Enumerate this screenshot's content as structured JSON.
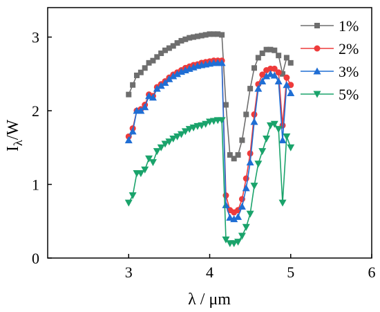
{
  "chart_data": {
    "type": "line",
    "xlabel": "λ / μm",
    "ylabel": "Iλ/W",
    "ylabel_main": "I",
    "ylabel_sub": "λ",
    "ylabel_rest": "/W",
    "xlim": [
      2,
      6
    ],
    "ylim": [
      0,
      3.4
    ],
    "xticks": [
      3,
      4,
      5,
      6
    ],
    "yticks": [
      0,
      1,
      2,
      3
    ],
    "grid": false,
    "legend_position": "top-right",
    "series": [
      {
        "name": "1%",
        "color": "#6e6e6e",
        "marker": "square",
        "x": [
          3.0,
          3.05,
          3.1,
          3.15,
          3.2,
          3.25,
          3.3,
          3.35,
          3.4,
          3.45,
          3.5,
          3.55,
          3.6,
          3.65,
          3.7,
          3.75,
          3.8,
          3.85,
          3.9,
          3.95,
          4.0,
          4.05,
          4.1,
          4.15,
          4.2,
          4.25,
          4.3,
          4.35,
          4.4,
          4.45,
          4.5,
          4.55,
          4.6,
          4.65,
          4.7,
          4.75,
          4.8,
          4.85,
          4.9,
          4.95,
          5.0
        ],
        "y": [
          2.22,
          2.35,
          2.48,
          2.52,
          2.58,
          2.65,
          2.68,
          2.73,
          2.78,
          2.82,
          2.85,
          2.88,
          2.92,
          2.95,
          2.97,
          2.99,
          3.0,
          3.01,
          3.02,
          3.03,
          3.04,
          3.04,
          3.04,
          3.03,
          2.08,
          1.4,
          1.35,
          1.4,
          1.6,
          1.95,
          2.3,
          2.58,
          2.72,
          2.78,
          2.83,
          2.83,
          2.82,
          2.75,
          2.5,
          2.72,
          2.65
        ]
      },
      {
        "name": "2%",
        "color": "#ee3b3b",
        "marker": "circle",
        "x": [
          3.0,
          3.05,
          3.1,
          3.15,
          3.2,
          3.25,
          3.3,
          3.35,
          3.4,
          3.45,
          3.5,
          3.55,
          3.6,
          3.65,
          3.7,
          3.75,
          3.8,
          3.85,
          3.9,
          3.95,
          4.0,
          4.05,
          4.1,
          4.15,
          4.2,
          4.25,
          4.3,
          4.35,
          4.4,
          4.45,
          4.5,
          4.55,
          4.6,
          4.65,
          4.7,
          4.75,
          4.8,
          4.85,
          4.9,
          4.95,
          5.0
        ],
        "y": [
          1.65,
          1.76,
          2.0,
          2.02,
          2.08,
          2.22,
          2.2,
          2.32,
          2.36,
          2.4,
          2.45,
          2.49,
          2.52,
          2.55,
          2.58,
          2.6,
          2.62,
          2.63,
          2.65,
          2.66,
          2.67,
          2.68,
          2.68,
          2.68,
          0.85,
          0.65,
          0.62,
          0.65,
          0.8,
          1.08,
          1.42,
          1.95,
          2.36,
          2.49,
          2.55,
          2.57,
          2.57,
          2.52,
          1.8,
          2.45,
          2.35
        ]
      },
      {
        "name": "3%",
        "color": "#1f6ed4",
        "marker": "triangle-up",
        "x": [
          3.0,
          3.05,
          3.1,
          3.15,
          3.2,
          3.25,
          3.3,
          3.35,
          3.4,
          3.45,
          3.5,
          3.55,
          3.6,
          3.65,
          3.7,
          3.75,
          3.8,
          3.85,
          3.9,
          3.95,
          4.0,
          4.05,
          4.1,
          4.15,
          4.2,
          4.25,
          4.3,
          4.35,
          4.4,
          4.45,
          4.5,
          4.55,
          4.6,
          4.65,
          4.7,
          4.75,
          4.8,
          4.85,
          4.9,
          4.95,
          5.0
        ],
        "y": [
          1.6,
          1.72,
          2.0,
          2.0,
          2.05,
          2.2,
          2.18,
          2.3,
          2.34,
          2.38,
          2.43,
          2.47,
          2.5,
          2.53,
          2.55,
          2.57,
          2.59,
          2.61,
          2.62,
          2.63,
          2.64,
          2.65,
          2.65,
          2.65,
          0.72,
          0.55,
          0.53,
          0.56,
          0.7,
          0.95,
          1.3,
          1.85,
          2.3,
          2.4,
          2.47,
          2.5,
          2.48,
          2.4,
          1.6,
          2.35,
          2.24
        ]
      },
      {
        "name": "5%",
        "color": "#1aa36b",
        "marker": "triangle-down",
        "x": [
          3.0,
          3.05,
          3.1,
          3.15,
          3.2,
          3.25,
          3.3,
          3.35,
          3.4,
          3.45,
          3.5,
          3.55,
          3.6,
          3.65,
          3.7,
          3.75,
          3.8,
          3.85,
          3.9,
          3.95,
          4.0,
          4.05,
          4.1,
          4.15,
          4.2,
          4.25,
          4.3,
          4.35,
          4.4,
          4.45,
          4.5,
          4.55,
          4.6,
          4.65,
          4.7,
          4.75,
          4.8,
          4.85,
          4.9,
          4.95,
          5.0
        ],
        "y": [
          0.75,
          0.85,
          1.15,
          1.15,
          1.2,
          1.35,
          1.3,
          1.45,
          1.5,
          1.55,
          1.58,
          1.62,
          1.65,
          1.68,
          1.72,
          1.75,
          1.77,
          1.79,
          1.8,
          1.82,
          1.85,
          1.86,
          1.87,
          1.87,
          0.25,
          0.2,
          0.2,
          0.22,
          0.3,
          0.42,
          0.6,
          0.98,
          1.28,
          1.45,
          1.62,
          1.8,
          1.82,
          1.75,
          0.75,
          1.65,
          1.5
        ]
      }
    ]
  }
}
